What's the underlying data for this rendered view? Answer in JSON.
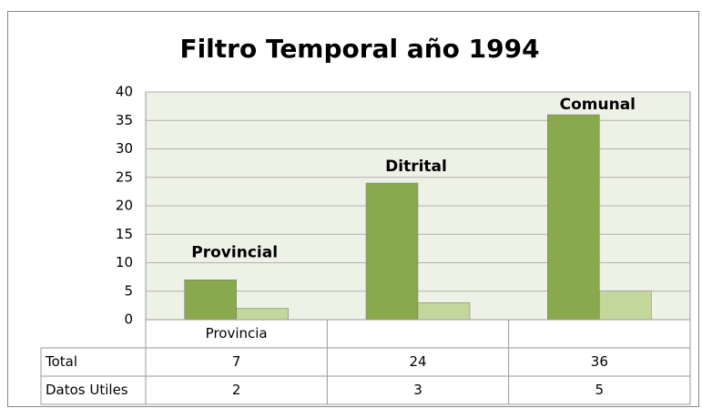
{
  "chart_data": {
    "type": "bar",
    "title": "Filtro Temporal año 1994",
    "categories": [
      "Provincia",
      null,
      null
    ],
    "series": [
      {
        "name": "Total",
        "color": "#8aa84e",
        "values": [
          7,
          24,
          36
        ]
      },
      {
        "name": "Datos Utiles",
        "color": "#c3d69b",
        "values": [
          2,
          3,
          5
        ]
      }
    ],
    "annotations": [
      "Provincial",
      "Ditrital",
      "Comunal"
    ],
    "ylim": [
      0,
      40
    ],
    "yticks": [
      0,
      5,
      10,
      15,
      20,
      25,
      30,
      35,
      40
    ],
    "grid": true
  }
}
